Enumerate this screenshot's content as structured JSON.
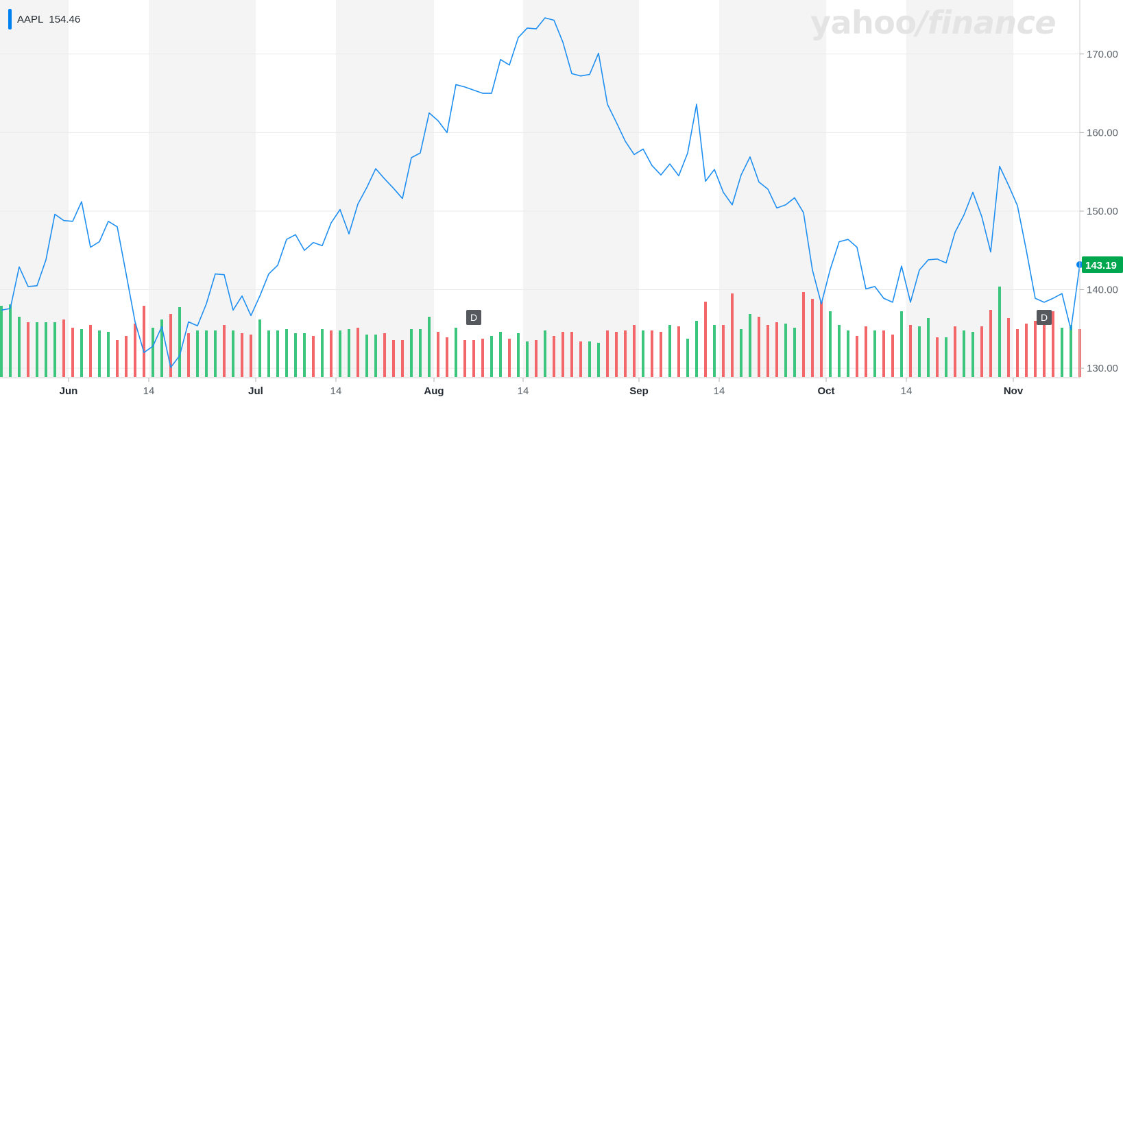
{
  "legend": {
    "symbol": "AAPL",
    "value": "154.46",
    "color": "#0081f2"
  },
  "watermark": {
    "part1": "yahoo",
    "slash": "/",
    "part2": "finance"
  },
  "colors": {
    "line": "#1e8ff0",
    "up": "#3cc57d",
    "down": "#f36669",
    "band": "#f4f4f4",
    "grid": "#eaeaea",
    "last_bg": "#00a74f",
    "marker_bg": "#55595e"
  },
  "chart_data": {
    "type": "line",
    "ylim": [
      128,
      176
    ],
    "yticks": [
      130,
      140,
      150,
      160,
      170
    ],
    "ytick_labels": [
      "130.00",
      "140.00",
      "150.00",
      "160.00",
      "170.00"
    ],
    "xticks": [
      {
        "label": "Jun",
        "index": 8,
        "major": true
      },
      {
        "label": "14",
        "index": 17,
        "major": false
      },
      {
        "label": "Jul",
        "index": 29,
        "major": true
      },
      {
        "label": "14",
        "index": 38,
        "major": false
      },
      {
        "label": "Aug",
        "index": 49,
        "major": true
      },
      {
        "label": "14",
        "index": 59,
        "major": false
      },
      {
        "label": "Sep",
        "index": 72,
        "major": true
      },
      {
        "label": "14",
        "index": 81,
        "major": false
      },
      {
        "label": "Oct",
        "index": 93,
        "major": true
      },
      {
        "label": "14",
        "index": 102,
        "major": false
      },
      {
        "label": "Nov",
        "index": 114,
        "major": true
      }
    ],
    "series": [
      {
        "values": [
          137.4,
          137.6,
          142.9,
          140.4,
          140.5,
          143.8,
          149.6,
          148.8,
          148.7,
          151.2,
          145.4,
          146.1,
          148.7,
          148.0,
          142.0,
          135.9,
          132.0,
          132.8,
          135.3,
          130.1,
          131.6,
          135.9,
          135.4,
          138.2,
          142.0,
          141.9,
          137.4,
          139.2,
          136.7,
          139.2,
          142.0,
          143.1,
          146.4,
          147.0,
          145.0,
          146.0,
          145.6,
          148.5,
          150.2,
          147.1,
          150.9,
          153.0,
          155.4,
          154.1,
          152.9,
          151.6,
          156.8,
          157.4,
          162.5,
          161.5,
          160.0,
          166.1,
          165.8,
          165.4,
          165.0,
          165.0,
          169.3,
          168.6,
          172.1,
          173.3,
          173.2,
          174.6,
          174.3,
          171.5,
          167.5,
          167.2,
          167.4,
          170.1,
          163.6,
          161.3,
          158.9,
          157.2,
          157.9,
          155.8,
          154.6,
          156.0,
          154.5,
          157.4,
          163.6,
          153.8,
          155.3,
          152.4,
          150.8,
          154.6,
          156.9,
          153.7,
          152.8,
          150.4,
          150.8,
          151.7,
          149.8,
          142.5,
          138.2,
          142.6,
          146.1,
          146.4,
          145.4,
          140.1,
          140.4,
          138.9,
          138.4,
          143.0,
          138.4,
          142.5,
          143.8,
          143.9,
          143.4,
          147.3,
          149.5,
          152.4,
          149.3,
          144.8,
          155.7,
          153.3,
          150.7,
          145.0,
          138.9,
          138.4,
          138.9,
          139.5,
          134.9,
          143.19
        ],
        "volumes": [
          52,
          53,
          44,
          40,
          40,
          40,
          40,
          42,
          36,
          35,
          38,
          34,
          33,
          27,
          30,
          39,
          52,
          36,
          42,
          46,
          51,
          32,
          34,
          34,
          34,
          38,
          34,
          32,
          31,
          42,
          34,
          34,
          35,
          32,
          32,
          30,
          35,
          34,
          34,
          35,
          36,
          31,
          31,
          32,
          27,
          27,
          35,
          35,
          44,
          33,
          29,
          36,
          27,
          27,
          28,
          30,
          33,
          28,
          32,
          26,
          27,
          34,
          30,
          33,
          33,
          26,
          26,
          25,
          34,
          33,
          34,
          38,
          34,
          34,
          33,
          38,
          37,
          28,
          41,
          55,
          38,
          38,
          61,
          35,
          46,
          44,
          38,
          40,
          39,
          36,
          62,
          57,
          55,
          48,
          38,
          34,
          30,
          37,
          34,
          34,
          31,
          48,
          38,
          37,
          43,
          29,
          29,
          37,
          34,
          33,
          37,
          49,
          66,
          43,
          35,
          39,
          41,
          43,
          48,
          36,
          38,
          35
        ],
        "up": [
          true,
          true,
          true,
          false,
          true,
          true,
          true,
          false,
          false,
          true,
          false,
          true,
          true,
          false,
          false,
          false,
          false,
          true,
          true,
          false,
          true,
          false,
          true,
          true,
          true,
          false,
          true,
          false,
          false,
          true,
          true,
          true,
          true,
          true,
          true,
          false,
          true,
          false,
          true,
          true,
          false,
          true,
          true,
          false,
          false,
          false,
          true,
          true,
          true,
          false,
          false,
          true,
          false,
          false,
          false,
          true,
          true,
          false,
          true,
          true,
          false,
          true,
          false,
          false,
          false,
          false,
          true,
          true,
          false,
          false,
          false,
          false,
          true,
          false,
          false,
          true,
          false,
          true,
          true,
          false,
          true,
          false,
          false,
          true,
          true,
          false,
          false,
          false,
          true,
          true,
          false,
          false,
          false,
          true,
          true,
          true,
          false,
          false,
          true,
          false,
          false,
          true,
          false,
          true,
          true,
          false,
          true,
          false,
          true,
          true,
          false,
          false,
          true,
          false,
          false,
          false,
          false,
          false,
          false,
          true,
          true,
          false
        ],
        "last": "143.19"
      }
    ],
    "markers": [
      {
        "label": "D",
        "index": 53
      },
      {
        "label": "D",
        "index": 117
      }
    ]
  }
}
